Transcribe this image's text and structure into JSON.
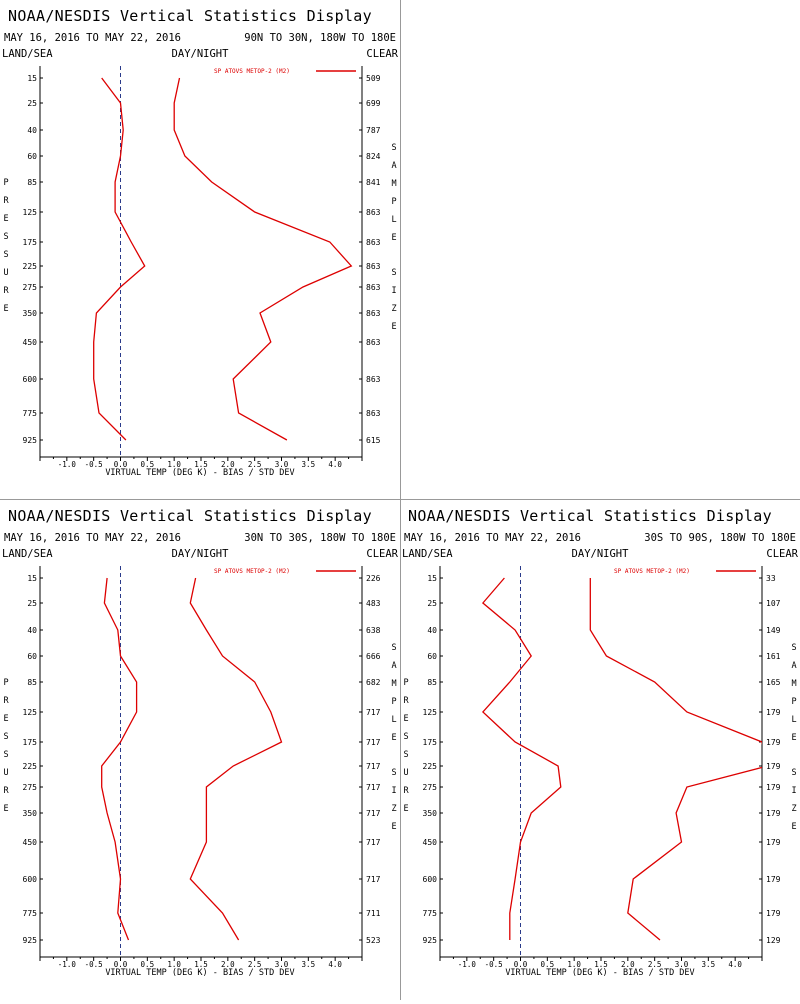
{
  "common": {
    "title": "NOAA/NESDIS Vertical Statistics Display",
    "dates": "MAY 16, 2016 TO MAY 22, 2016",
    "land_sea": "LAND/SEA",
    "day_night": "DAY/NIGHT",
    "clear": "CLEAR",
    "pressure_letters": [
      "P",
      "R",
      "E",
      "S",
      "S",
      "U",
      "R",
      "E"
    ],
    "sample_letters": [
      "S",
      "A",
      "M",
      "P",
      "L",
      "E"
    ],
    "size_letters": [
      "S",
      "I",
      "Z",
      "E"
    ],
    "line_color": "#dd0000",
    "zero_line_color": "#2a3a8a"
  },
  "chart_data": [
    {
      "type": "line",
      "region": "90N TO 30N, 180W TO 180E",
      "legend": "SP ATOVS METOP-2 (M2)",
      "xlabel": "VIRTUAL TEMP (DEG K) - BIAS / STD DEV",
      "ylabel": "PRESSURE",
      "y2label": "SAMPLE SIZE",
      "xlim": [
        -1.5,
        4.5
      ],
      "xticks": [
        "-1.0",
        "-0.5",
        "0.0",
        "0.5",
        "1.0",
        "1.5",
        "2.0",
        "2.5",
        "3.0",
        "3.5",
        "4.0"
      ],
      "pressure_levels": [
        "15",
        "25",
        "40",
        "60",
        "85",
        "125",
        "175",
        "225",
        "275",
        "350",
        "450",
        "600",
        "775",
        "925"
      ],
      "sample_size": [
        "509",
        "699",
        "787",
        "824",
        "841",
        "863",
        "863",
        "863",
        "863",
        "863",
        "863",
        "863",
        "863",
        "615"
      ],
      "series": [
        {
          "name": "BIAS",
          "values": [
            -0.35,
            0.0,
            0.05,
            0.0,
            -0.1,
            -0.1,
            0.2,
            0.45,
            0.0,
            -0.45,
            -0.5,
            -0.5,
            -0.4,
            0.1
          ]
        },
        {
          "name": "STD DEV",
          "values": [
            1.1,
            1.0,
            1.0,
            1.2,
            1.7,
            2.5,
            3.9,
            4.3,
            3.4,
            2.6,
            2.8,
            2.1,
            2.2,
            3.1
          ]
        }
      ]
    },
    {
      "type": "line",
      "region": "30N TO 30S, 180W TO 180E",
      "legend": "SP ATOVS METOP-2 (M2)",
      "xlabel": "VIRTUAL TEMP (DEG K) - BIAS / STD DEV",
      "ylabel": "PRESSURE",
      "y2label": "SAMPLE SIZE",
      "xlim": [
        -1.5,
        4.5
      ],
      "xticks": [
        "-1.0",
        "-0.5",
        "0.0",
        "0.5",
        "1.0",
        "1.5",
        "2.0",
        "2.5",
        "3.0",
        "3.5",
        "4.0"
      ],
      "pressure_levels": [
        "15",
        "25",
        "40",
        "60",
        "85",
        "125",
        "175",
        "225",
        "275",
        "350",
        "450",
        "600",
        "775",
        "925"
      ],
      "sample_size": [
        "226",
        "483",
        "638",
        "666",
        "682",
        "717",
        "717",
        "717",
        "717",
        "717",
        "717",
        "717",
        "711",
        "523"
      ],
      "series": [
        {
          "name": "BIAS",
          "values": [
            -0.25,
            -0.3,
            -0.05,
            0.0,
            0.3,
            0.3,
            0.0,
            -0.35,
            -0.35,
            -0.25,
            -0.1,
            0.0,
            -0.05,
            0.15
          ]
        },
        {
          "name": "STD DEV",
          "values": [
            1.4,
            1.3,
            1.6,
            1.9,
            2.5,
            2.8,
            3.0,
            2.1,
            1.6,
            1.6,
            1.6,
            1.3,
            1.9,
            2.2
          ]
        }
      ]
    },
    {
      "type": "line",
      "region": "30S TO 90S, 180W TO 180E",
      "legend": "SP ATOVS METOP-2 (M2)",
      "xlabel": "VIRTUAL TEMP (DEG K) - BIAS / STD DEV",
      "ylabel": "PRESSURE",
      "y2label": "SAMPLE SIZE",
      "xlim": [
        -1.5,
        4.5
      ],
      "xticks": [
        "-1.0",
        "-0.5",
        "0.0",
        "0.5",
        "1.0",
        "1.5",
        "2.0",
        "2.5",
        "3.0",
        "3.5",
        "4.0"
      ],
      "pressure_levels": [
        "15",
        "25",
        "40",
        "60",
        "85",
        "125",
        "175",
        "225",
        "275",
        "350",
        "450",
        "600",
        "775",
        "925"
      ],
      "sample_size": [
        "33",
        "107",
        "149",
        "161",
        "165",
        "179",
        "179",
        "179",
        "179",
        "179",
        "179",
        "179",
        "179",
        "129"
      ],
      "series": [
        {
          "name": "BIAS",
          "values": [
            -0.3,
            -0.7,
            -0.1,
            0.2,
            -0.2,
            -0.7,
            -0.1,
            0.7,
            0.75,
            0.2,
            0.0,
            -0.1,
            -0.2,
            -0.2
          ]
        },
        {
          "name": "STD DEV",
          "values": [
            1.3,
            1.3,
            1.3,
            1.6,
            2.5,
            3.1,
            4.5,
            4.6,
            3.1,
            2.9,
            3.0,
            2.1,
            2.0,
            2.6
          ]
        }
      ]
    }
  ]
}
